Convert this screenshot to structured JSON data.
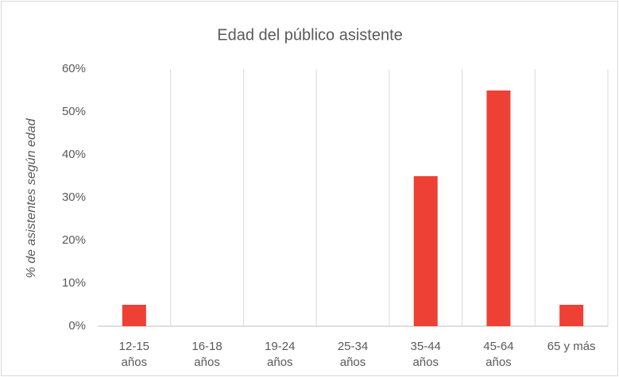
{
  "chart_data": {
    "type": "bar",
    "title": "Edad del público asistente",
    "y_label": "% de asistentes según edad",
    "categories": [
      "12-15\naños",
      "16-18\naños",
      "19-24\naños",
      "25-34\naños",
      "35-44\naños",
      "45-64\naños",
      "65 y más"
    ],
    "values": [
      5,
      0,
      0,
      0,
      35,
      55,
      5
    ],
    "color": "#ee4035",
    "ylim": [
      0,
      60
    ],
    "yticks": [
      {
        "value": 0,
        "label": "0%"
      },
      {
        "value": 10,
        "label": "10%"
      },
      {
        "value": 20,
        "label": "20%"
      },
      {
        "value": 30,
        "label": "30%"
      },
      {
        "value": 40,
        "label": "40%"
      },
      {
        "value": 50,
        "label": "50%"
      },
      {
        "value": 60,
        "label": "60%"
      }
    ],
    "grid": false
  }
}
